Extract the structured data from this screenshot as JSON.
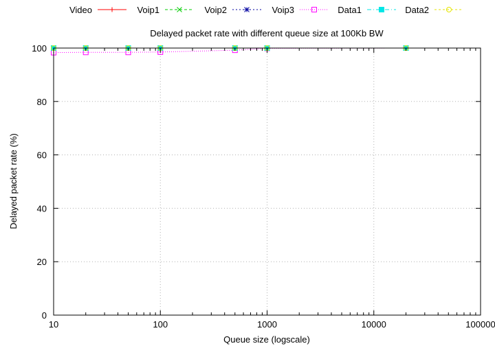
{
  "chart_data": {
    "type": "line",
    "title": "Delayed packet rate  with different queue size at 100Kb BW",
    "xlabel": "Queue size (logscale)",
    "ylabel": "Delayed packet rate (%)",
    "xscale": "log",
    "xlim": [
      10,
      100000
    ],
    "ylim": [
      0,
      100
    ],
    "x_ticks": [
      10,
      100,
      1000,
      10000,
      100000
    ],
    "x_tick_labels": [
      "10",
      "100",
      "1000",
      "10000",
      "100000"
    ],
    "y_ticks": [
      0,
      20,
      40,
      60,
      80,
      100
    ],
    "y_tick_labels": [
      "0",
      "20",
      "40",
      "60",
      "80",
      "100"
    ],
    "grid": true,
    "legend_position": "top",
    "series": [
      {
        "name": "Video",
        "color": "#ff0000",
        "marker": "plus",
        "dash": "",
        "x": [
          10,
          20,
          50,
          100,
          500,
          1000,
          20000
        ],
        "y": [
          100,
          100,
          100,
          100,
          100,
          100,
          100
        ]
      },
      {
        "name": "Voip1",
        "color": "#00cc00",
        "marker": "cross",
        "dash": "4,3",
        "x": [
          10,
          20,
          50,
          100,
          500,
          1000,
          20000
        ],
        "y": [
          100,
          100,
          100,
          100,
          100,
          100,
          100
        ]
      },
      {
        "name": "Voip2",
        "color": "#0000a0",
        "marker": "star",
        "dash": "2,3",
        "x": [
          10,
          20,
          50,
          100,
          500,
          1000,
          20000
        ],
        "y": [
          100,
          100,
          100,
          100,
          100,
          100,
          100
        ]
      },
      {
        "name": "Voip3",
        "color": "#ff00ff",
        "marker": "square",
        "dash": "1,2",
        "x": [
          10,
          20,
          50,
          100,
          500,
          1000,
          20000
        ],
        "y": [
          98.3,
          98.4,
          98.4,
          98.5,
          99.2,
          99.9,
          100
        ]
      },
      {
        "name": "Data1",
        "color": "#00e6e6",
        "marker": "filled-square",
        "dash": "6,3,1,3",
        "x": [
          10,
          20,
          50,
          100,
          500,
          1000,
          20000
        ],
        "y": [
          100,
          100,
          100,
          100,
          100,
          100,
          100
        ]
      },
      {
        "name": "Data2",
        "color": "#e6e600",
        "marker": "circle",
        "dash": "3,3",
        "x": [
          10,
          20,
          50,
          100,
          500,
          1000,
          20000
        ],
        "y": [
          100,
          100,
          100,
          100,
          100,
          100,
          100
        ]
      }
    ]
  }
}
